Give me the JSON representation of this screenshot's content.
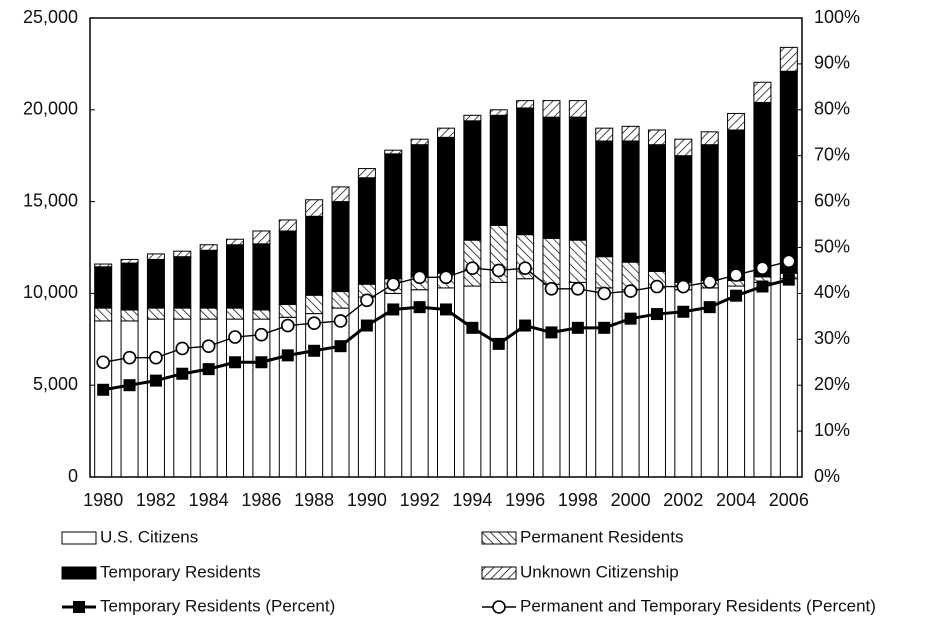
{
  "chart_data": {
    "type": "bar",
    "categories": [
      "1980",
      null,
      "1982",
      null,
      "1984",
      null,
      "1986",
      null,
      "1988",
      null,
      "1990",
      null,
      "1992",
      null,
      "1994",
      null,
      "1996",
      null,
      "1998",
      null,
      "2000",
      null,
      "2002",
      null,
      "2004",
      null,
      "2006"
    ],
    "stacked": true,
    "series": [
      {
        "name": "U.S. Citizens",
        "color": "#ffffff",
        "pattern": "none",
        "values": [
          8500,
          8500,
          8600,
          8600,
          8600,
          8600,
          8600,
          8700,
          8900,
          9200,
          9800,
          10000,
          10200,
          10300,
          10400,
          10600,
          10800,
          10500,
          10600,
          10300,
          10200,
          10300,
          10200,
          10300,
          10400,
          10600,
          10800
        ]
      },
      {
        "name": "Permanent Residents",
        "color": "#ffffff",
        "pattern": "backslash",
        "values": [
          700,
          600,
          600,
          600,
          600,
          600,
          500,
          700,
          1000,
          900,
          700,
          800,
          700,
          800,
          2500,
          3100,
          2400,
          2500,
          2300,
          1700,
          1500,
          900,
          400,
          400,
          300,
          300,
          300
        ]
      },
      {
        "name": "Temporary Residents",
        "color": "#000000",
        "pattern": "none",
        "values": [
          2250,
          2550,
          2650,
          2800,
          3150,
          3450,
          3600,
          4000,
          4300,
          4900,
          5800,
          6800,
          7200,
          7400,
          6500,
          6000,
          6900,
          6600,
          6700,
          6300,
          6600,
          6900,
          6900,
          7400,
          8200,
          9500,
          11000
        ]
      },
      {
        "name": "Unknown Citizenship",
        "color": "#ffffff",
        "pattern": "slash",
        "values": [
          150,
          200,
          300,
          300,
          300,
          300,
          700,
          600,
          900,
          800,
          500,
          200,
          300,
          500,
          300,
          300,
          400,
          900,
          900,
          700,
          800,
          800,
          900,
          700,
          900,
          1100,
          1300
        ]
      },
      {
        "name": "Temporary Residents (Percent)",
        "type": "line",
        "axis": "y2",
        "color": "#000000",
        "marker": "square",
        "values": [
          19,
          20,
          21,
          22.5,
          23.5,
          25,
          25,
          26.5,
          27.5,
          28.5,
          33,
          36.5,
          37,
          36.5,
          32.5,
          29,
          33,
          31.5,
          32.5,
          32.5,
          34.5,
          35.5,
          36,
          37,
          39.5,
          41.5,
          43
        ]
      },
      {
        "name": "Permanent and Temporary Residents (Percent)",
        "type": "line",
        "axis": "y2",
        "color": "#000000",
        "marker": "circle",
        "values": [
          25,
          26,
          26,
          28,
          28.5,
          30.5,
          31,
          33,
          33.5,
          34,
          38.5,
          42,
          43.5,
          43.5,
          45.5,
          45,
          45.5,
          41,
          41,
          40,
          40.5,
          41.5,
          41.5,
          42.5,
          44,
          45.5,
          47
        ]
      }
    ],
    "ylim": [
      0,
      25000
    ],
    "yticks": [
      0,
      {
        "value": 5000,
        "label": "5,000"
      },
      {
        "value": 10000,
        "label": "10,000"
      },
      {
        "value": 15000,
        "label": "15,000"
      },
      {
        "value": 20000,
        "label": "20,000"
      },
      {
        "value": 25000,
        "label": "25,000"
      }
    ],
    "y2lim": [
      0,
      100
    ],
    "y2ticks": [
      {
        "value": 0,
        "label": "0%"
      },
      {
        "value": 10,
        "label": "10%"
      },
      {
        "value": 20,
        "label": "20%"
      },
      {
        "value": 30,
        "label": "30%"
      },
      {
        "value": 40,
        "label": "40%"
      },
      {
        "value": 50,
        "label": "50%"
      },
      {
        "value": 60,
        "label": "60%"
      },
      {
        "value": 70,
        "label": "70%"
      },
      {
        "value": 80,
        "label": "80%"
      },
      {
        "value": 90,
        "label": "90%"
      },
      {
        "value": 100,
        "label": "100%"
      }
    ],
    "legend": "bottom"
  }
}
